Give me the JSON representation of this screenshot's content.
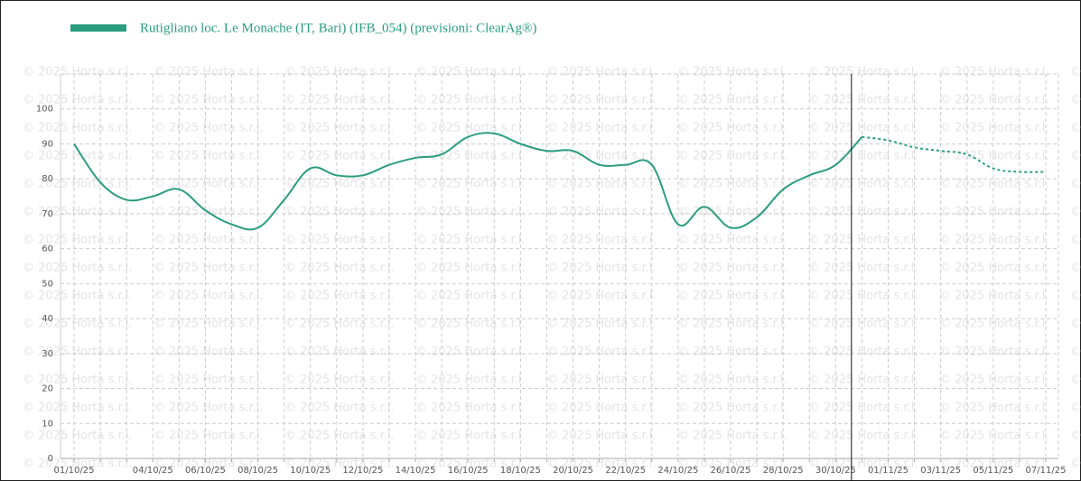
{
  "chart_data": {
    "type": "line",
    "watermark": "© 2025 Horta s.r.l.",
    "categories": [
      "01/10/25",
      null,
      null,
      "04/10/25",
      null,
      "06/10/25",
      null,
      "08/10/25",
      null,
      "10/10/25",
      null,
      "12/10/25",
      null,
      "14/10/25",
      null,
      "16/10/25",
      null,
      "18/10/25",
      null,
      "20/10/25",
      null,
      "22/10/25",
      null,
      "24/10/25",
      null,
      "26/10/25",
      null,
      "28/10/25",
      null,
      "30/10/25",
      null,
      "01/11/25",
      null,
      "03/11/25",
      null,
      "05/11/25",
      null,
      "07/11/25"
    ],
    "series": [
      {
        "name": "Rutigliano loc. Le Monache (IT, Bari) (IFB_054) (previsioni: ClearAg®)",
        "color": "#2a9d7f",
        "values": [
          90,
          79,
          74,
          75,
          77,
          71,
          67,
          66,
          74,
          83,
          81,
          81,
          84,
          86,
          87,
          92,
          93,
          90,
          88,
          88,
          84,
          84,
          84,
          67,
          72,
          66,
          69,
          77,
          81,
          84,
          92,
          null,
          null,
          null,
          null,
          null,
          null,
          null
        ],
        "forecast": [
          null,
          null,
          null,
          null,
          null,
          null,
          null,
          null,
          null,
          null,
          null,
          null,
          null,
          null,
          null,
          null,
          null,
          null,
          null,
          null,
          null,
          null,
          null,
          null,
          null,
          null,
          null,
          null,
          null,
          null,
          92,
          91,
          89,
          88,
          87,
          83,
          82,
          82
        ]
      }
    ],
    "ylim": [
      0,
      110
    ],
    "yticks": [
      0,
      10,
      20,
      30,
      40,
      50,
      60,
      70,
      80,
      90,
      100
    ],
    "grid": true
  }
}
